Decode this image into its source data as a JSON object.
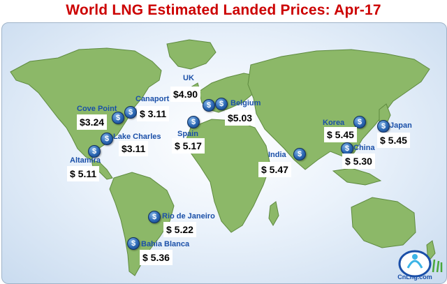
{
  "title": "World LNG Estimated Landed Prices: Apr-17",
  "colors": {
    "title": "#cc0000",
    "land": "#8cb868",
    "city_label": "#1a4fa8",
    "coin": "#2b67b3"
  },
  "icon": "dollar-coin-icon",
  "markers": [
    {
      "city": "UK",
      "price": "$4.90"
    },
    {
      "city": "Belgium",
      "price": "$5.03"
    },
    {
      "city": "Spain",
      "price": "$ 5.17"
    },
    {
      "city": "Canaport",
      "price": "$ 3.11"
    },
    {
      "city": "Cove Point",
      "price": "$3.24"
    },
    {
      "city": "Lake Charles",
      "price": "$3.11"
    },
    {
      "city": "Altamira",
      "price": "$ 5.11"
    },
    {
      "city": "Rio de Janeiro",
      "price": "$ 5.22"
    },
    {
      "city": "Bahia Blanca",
      "price": "$ 5.36"
    },
    {
      "city": "India",
      "price": "$ 5.47"
    },
    {
      "city": "Korea",
      "price": "$ 5.45"
    },
    {
      "city": "China",
      "price": "$ 5.30"
    },
    {
      "city": "Japan",
      "price": "$ 5.45"
    }
  ],
  "logo": {
    "text": "CnLng.com"
  }
}
